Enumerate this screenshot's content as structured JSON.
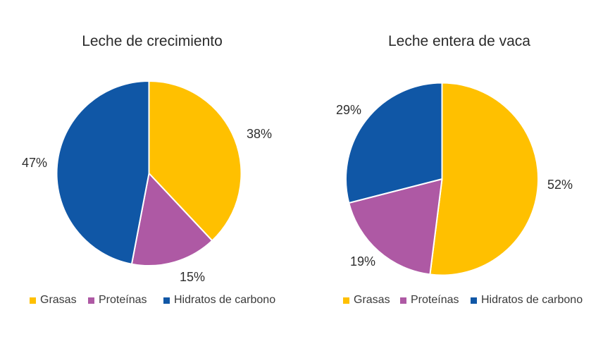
{
  "page": {
    "background": "#FFFFFF"
  },
  "chart_data": [
    {
      "type": "pie",
      "title": "Leche de crecimiento",
      "unit": "percent",
      "legend_position": "bottom",
      "start_angle_deg": 0,
      "direction": "clockwise",
      "slices": [
        {
          "label": "Grasas",
          "value": 38,
          "display": "38%",
          "color": "#FFC000"
        },
        {
          "label": "Proteínas",
          "value": 15,
          "display": "15%",
          "color": "#AE59A4"
        },
        {
          "label": "Hidratos de carbono",
          "value": 47,
          "display": "47%",
          "color": "#1057A6"
        }
      ]
    },
    {
      "type": "pie",
      "title": "Leche entera de vaca",
      "unit": "percent",
      "legend_position": "bottom",
      "start_angle_deg": 0,
      "direction": "clockwise",
      "slices": [
        {
          "label": "Grasas",
          "value": 52,
          "display": "52%",
          "color": "#FFC000"
        },
        {
          "label": "Proteínas",
          "value": 19,
          "display": "19%",
          "color": "#AE59A4"
        },
        {
          "label": "Hidratos de carbono",
          "value": 29,
          "display": "29%",
          "color": "#1057A6"
        }
      ]
    }
  ]
}
